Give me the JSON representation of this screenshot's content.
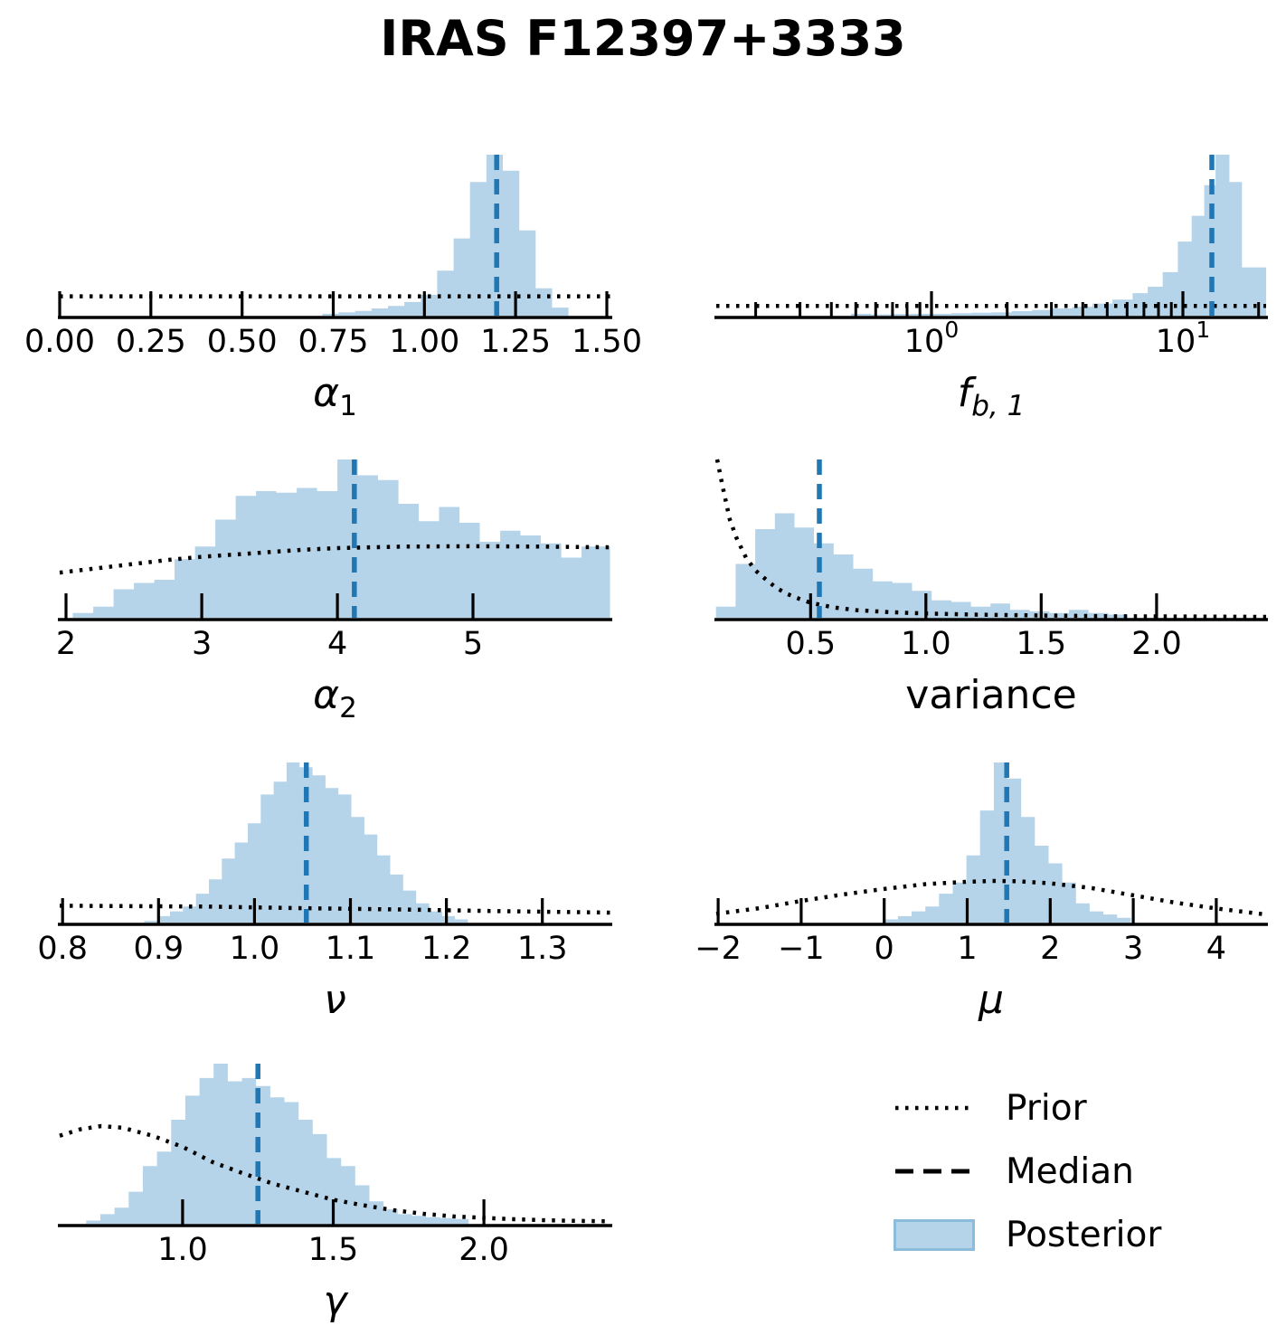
{
  "title": "IRAS F12397+3333",
  "colors": {
    "posterior_fill": "#b5d4ea",
    "posterior_edge": "#8cbcdc",
    "median_line": "#2077b4",
    "prior_line": "#000000",
    "axis": "#000000",
    "text": "#000000",
    "background": "#ffffff"
  },
  "legend": {
    "items": [
      {
        "label": "Prior",
        "sample": "dotted-line"
      },
      {
        "label": "Median",
        "sample": "dashed-line"
      },
      {
        "label": "Posterior",
        "sample": "filled-patch"
      }
    ]
  },
  "chart_data": [
    {
      "id": "alpha1",
      "type": "histogram",
      "scale": "linear",
      "label": {
        "text": "α",
        "sub": "1",
        "italic": true,
        "sub_italic": false
      },
      "xlim": [
        0.0,
        1.51
      ],
      "ticks": [
        {
          "v": 0.0,
          "t": "0.00"
        },
        {
          "v": 0.25,
          "t": "0.25"
        },
        {
          "v": 0.5,
          "t": "0.50"
        },
        {
          "v": 0.75,
          "t": "0.75"
        },
        {
          "v": 1.0,
          "t": "1.00"
        },
        {
          "v": 1.25,
          "t": "1.25"
        },
        {
          "v": 1.5,
          "t": "1.50"
        }
      ],
      "hist": {
        "edges": [
          0.72,
          0.765,
          0.81,
          0.855,
          0.9,
          0.945,
          0.99,
          1.035,
          1.08,
          1.125,
          1.17,
          1.215,
          1.26,
          1.305,
          1.35,
          1.395
        ],
        "heights": [
          0.012,
          0.02,
          0.03,
          0.045,
          0.06,
          0.085,
          0.13,
          0.28,
          0.48,
          0.83,
          1.0,
          0.9,
          0.53,
          0.17,
          0.05
        ]
      },
      "median": 1.198,
      "prior": [
        [
          0.0,
          0.12
        ],
        [
          1.51,
          0.12
        ]
      ]
    },
    {
      "id": "fb1",
      "type": "histogram",
      "scale": "log10",
      "label": {
        "text": "f",
        "sub": "b, 1",
        "italic": true,
        "sub_italic": true
      },
      "xlim": [
        -0.856,
        1.331
      ],
      "ticks": [
        {
          "v": 0,
          "t": "10",
          "exp": "0"
        },
        {
          "v": 1,
          "t": "10",
          "exp": "1"
        }
      ],
      "minor_ticks": [
        -0.699,
        -0.523,
        -0.398,
        -0.301,
        -0.222,
        -0.155,
        -0.097,
        -0.046,
        0.301,
        0.477,
        0.602,
        0.699,
        0.778,
        0.845,
        0.903,
        0.954,
        1.301
      ],
      "hist": {
        "edges": [
          -0.32,
          -0.24,
          -0.16,
          -0.08,
          0.0,
          0.08,
          0.16,
          0.24,
          0.32,
          0.4,
          0.48,
          0.56,
          0.64,
          0.72,
          0.8,
          0.86,
          0.92,
          0.98,
          1.035,
          1.085,
          1.13,
          1.185,
          1.235,
          1.331
        ],
        "heights": [
          0.012,
          0.008,
          0.01,
          0.012,
          0.012,
          0.015,
          0.018,
          0.02,
          0.028,
          0.035,
          0.045,
          0.055,
          0.075,
          0.1,
          0.14,
          0.18,
          0.27,
          0.46,
          0.62,
          0.81,
          1.0,
          0.83,
          0.3
        ]
      },
      "median": 1.115,
      "prior": [
        [
          -0.856,
          0.06
        ],
        [
          1.331,
          0.06
        ]
      ]
    },
    {
      "id": "alpha2",
      "type": "histogram",
      "scale": "linear",
      "label": {
        "text": "α",
        "sub": "2",
        "italic": true,
        "sub_italic": false
      },
      "xlim": [
        1.953,
        6.013
      ],
      "ticks": [
        {
          "v": 2,
          "t": "2"
        },
        {
          "v": 3,
          "t": "3"
        },
        {
          "v": 4,
          "t": "4"
        },
        {
          "v": 5,
          "t": "5"
        }
      ],
      "hist": {
        "edges": [
          2.05,
          2.2,
          2.35,
          2.5,
          2.65,
          2.8,
          2.95,
          3.1,
          3.25,
          3.4,
          3.55,
          3.7,
          3.85,
          4.0,
          4.15,
          4.3,
          4.45,
          4.6,
          4.75,
          4.9,
          5.05,
          5.2,
          5.35,
          5.5,
          5.65,
          5.8,
          6.01
        ],
        "heights": [
          0.03,
          0.07,
          0.18,
          0.22,
          0.24,
          0.37,
          0.45,
          0.62,
          0.77,
          0.8,
          0.79,
          0.82,
          0.8,
          1.0,
          0.9,
          0.87,
          0.72,
          0.61,
          0.7,
          0.6,
          0.48,
          0.55,
          0.52,
          0.47,
          0.38,
          0.45
        ]
      },
      "median": 4.125,
      "prior": [
        [
          1.953,
          0.285
        ],
        [
          2.25,
          0.315
        ],
        [
          2.5,
          0.34
        ],
        [
          2.75,
          0.365
        ],
        [
          3.0,
          0.385
        ],
        [
          3.25,
          0.4
        ],
        [
          3.5,
          0.415
        ],
        [
          3.75,
          0.43
        ],
        [
          4.0,
          0.44
        ],
        [
          4.25,
          0.445
        ],
        [
          4.5,
          0.45
        ],
        [
          5.0,
          0.452
        ],
        [
          5.5,
          0.45
        ],
        [
          6.013,
          0.445
        ]
      ]
    },
    {
      "id": "variance",
      "type": "histogram",
      "scale": "linear",
      "label": {
        "text": "variance",
        "sub": "",
        "italic": false,
        "sub_italic": false
      },
      "xlim": [
        0.091,
        2.475
      ],
      "ticks": [
        {
          "v": 0.5,
          "t": "0.5"
        },
        {
          "v": 1.0,
          "t": "1.0"
        },
        {
          "v": 1.5,
          "t": "1.5"
        },
        {
          "v": 2.0,
          "t": "2.0"
        }
      ],
      "hist": {
        "edges": [
          0.09,
          0.175,
          0.26,
          0.345,
          0.43,
          0.515,
          0.6,
          0.685,
          0.77,
          0.855,
          0.94,
          1.025,
          1.11,
          1.195,
          1.28,
          1.365,
          1.45,
          1.535,
          1.62,
          1.705,
          1.79,
          1.875
        ],
        "heights": [
          0.07,
          0.34,
          0.56,
          0.66,
          0.57,
          0.47,
          0.4,
          0.31,
          0.23,
          0.22,
          0.17,
          0.11,
          0.1,
          0.07,
          0.09,
          0.05,
          0.04,
          0.03,
          0.05,
          0.03,
          0.02
        ]
      },
      "median": 0.538,
      "prior": [
        [
          0.095,
          1.0
        ],
        [
          0.12,
          0.82
        ],
        [
          0.15,
          0.62
        ],
        [
          0.18,
          0.5
        ],
        [
          0.22,
          0.38
        ],
        [
          0.26,
          0.3
        ],
        [
          0.3,
          0.25
        ],
        [
          0.35,
          0.19
        ],
        [
          0.4,
          0.15
        ],
        [
          0.45,
          0.12
        ],
        [
          0.5,
          0.095
        ],
        [
          0.6,
          0.065
        ],
        [
          0.7,
          0.048
        ],
        [
          0.85,
          0.035
        ],
        [
          1.0,
          0.027
        ],
        [
          1.2,
          0.02
        ],
        [
          1.5,
          0.014
        ],
        [
          1.8,
          0.01
        ],
        [
          2.1,
          0.008
        ],
        [
          2.475,
          0.006
        ]
      ]
    },
    {
      "id": "nu",
      "type": "histogram",
      "scale": "linear",
      "label": {
        "text": "ν",
        "sub": "",
        "italic": true,
        "sub_italic": false
      },
      "xlim": [
        0.797,
        1.371
      ],
      "ticks": [
        {
          "v": 0.8,
          "t": "0.8"
        },
        {
          "v": 0.9,
          "t": "0.9"
        },
        {
          "v": 1.0,
          "t": "1.0"
        },
        {
          "v": 1.1,
          "t": "1.1"
        },
        {
          "v": 1.2,
          "t": "1.2"
        },
        {
          "v": 1.3,
          "t": "1.3"
        }
      ],
      "hist": {
        "edges": [
          0.885,
          0.8985,
          0.912,
          0.9255,
          0.939,
          0.9525,
          0.966,
          0.9795,
          0.993,
          1.0065,
          1.02,
          1.0335,
          1.047,
          1.0605,
          1.074,
          1.0875,
          1.101,
          1.1145,
          1.128,
          1.1415,
          1.155,
          1.1685,
          1.182,
          1.1955,
          1.209,
          1.2225
        ],
        "heights": [
          0.01,
          0.04,
          0.07,
          0.1,
          0.18,
          0.27,
          0.4,
          0.5,
          0.62,
          0.8,
          0.88,
          1.0,
          0.97,
          0.92,
          0.84,
          0.8,
          0.66,
          0.55,
          0.42,
          0.3,
          0.2,
          0.12,
          0.07,
          0.04,
          0.02
        ]
      },
      "median": 1.054,
      "prior": [
        [
          0.797,
          0.105
        ],
        [
          0.95,
          0.1
        ],
        [
          1.05,
          0.09
        ],
        [
          1.15,
          0.082
        ],
        [
          1.25,
          0.072
        ],
        [
          1.371,
          0.062
        ]
      ]
    },
    {
      "id": "mu",
      "type": "histogram",
      "scale": "linear",
      "label": {
        "text": "μ",
        "sub": "",
        "italic": true,
        "sub_italic": false
      },
      "xlim": [
        -2.023,
        4.6
      ],
      "ticks": [
        {
          "v": -2,
          "t": "−2"
        },
        {
          "v": -1,
          "t": "−1"
        },
        {
          "v": 0,
          "t": "0"
        },
        {
          "v": 1,
          "t": "1"
        },
        {
          "v": 2,
          "t": "2"
        },
        {
          "v": 3,
          "t": "3"
        },
        {
          "v": 4,
          "t": "4"
        }
      ],
      "hist": {
        "edges": [
          0.0,
          0.165,
          0.33,
          0.495,
          0.66,
          0.825,
          0.99,
          1.155,
          1.32,
          1.485,
          1.65,
          1.815,
          1.98,
          2.145,
          2.31,
          2.475,
          2.64,
          2.805,
          2.97
        ],
        "heights": [
          0.02,
          0.04,
          0.07,
          0.1,
          0.18,
          0.25,
          0.42,
          0.7,
          1.0,
          0.9,
          0.66,
          0.48,
          0.37,
          0.25,
          0.12,
          0.07,
          0.05,
          0.03
        ]
      },
      "median": 1.476,
      "prior": [
        [
          -2.023,
          0.055
        ],
        [
          -1.5,
          0.09
        ],
        [
          -1.0,
          0.135
        ],
        [
          -0.5,
          0.175
        ],
        [
          0.0,
          0.21
        ],
        [
          0.5,
          0.24
        ],
        [
          1.0,
          0.255
        ],
        [
          1.3,
          0.26
        ],
        [
          1.6,
          0.258
        ],
        [
          2.0,
          0.245
        ],
        [
          2.5,
          0.215
        ],
        [
          3.0,
          0.17
        ],
        [
          3.5,
          0.125
        ],
        [
          4.0,
          0.088
        ],
        [
          4.6,
          0.05
        ]
      ]
    },
    {
      "id": "gamma",
      "type": "histogram",
      "scale": "linear",
      "label": {
        "text": "γ",
        "sub": "",
        "italic": true,
        "sub_italic": false
      },
      "xlim": [
        0.592,
        2.42
      ],
      "ticks": [
        {
          "v": 1.0,
          "t": "1.0"
        },
        {
          "v": 1.5,
          "t": "1.5"
        },
        {
          "v": 2.0,
          "t": "2.0"
        }
      ],
      "hist": {
        "edges": [
          0.68,
          0.727,
          0.774,
          0.821,
          0.868,
          0.915,
          0.962,
          1.009,
          1.056,
          1.103,
          1.15,
          1.197,
          1.244,
          1.291,
          1.338,
          1.385,
          1.432,
          1.479,
          1.526,
          1.573,
          1.62,
          1.667,
          1.714,
          1.761,
          1.808,
          1.855,
          1.902,
          1.949
        ],
        "heights": [
          0.02,
          0.06,
          0.1,
          0.2,
          0.36,
          0.45,
          0.65,
          0.8,
          0.91,
          1.0,
          0.89,
          0.91,
          0.86,
          0.79,
          0.76,
          0.65,
          0.56,
          0.41,
          0.36,
          0.24,
          0.14,
          0.09,
          0.06,
          0.05,
          0.04,
          0.035,
          0.03
        ]
      },
      "median": 1.25,
      "prior": [
        [
          0.592,
          0.55
        ],
        [
          0.66,
          0.59
        ],
        [
          0.73,
          0.61
        ],
        [
          0.8,
          0.6
        ],
        [
          0.9,
          0.55
        ],
        [
          1.0,
          0.48
        ],
        [
          1.1,
          0.385
        ],
        [
          1.2,
          0.315
        ],
        [
          1.3,
          0.25
        ],
        [
          1.4,
          0.2
        ],
        [
          1.5,
          0.15
        ],
        [
          1.6,
          0.115
        ],
        [
          1.7,
          0.085
        ],
        [
          1.8,
          0.062
        ],
        [
          1.9,
          0.046
        ],
        [
          2.0,
          0.037
        ],
        [
          2.1,
          0.028
        ],
        [
          2.2,
          0.022
        ],
        [
          2.3,
          0.018
        ],
        [
          2.42,
          0.015
        ]
      ]
    }
  ]
}
